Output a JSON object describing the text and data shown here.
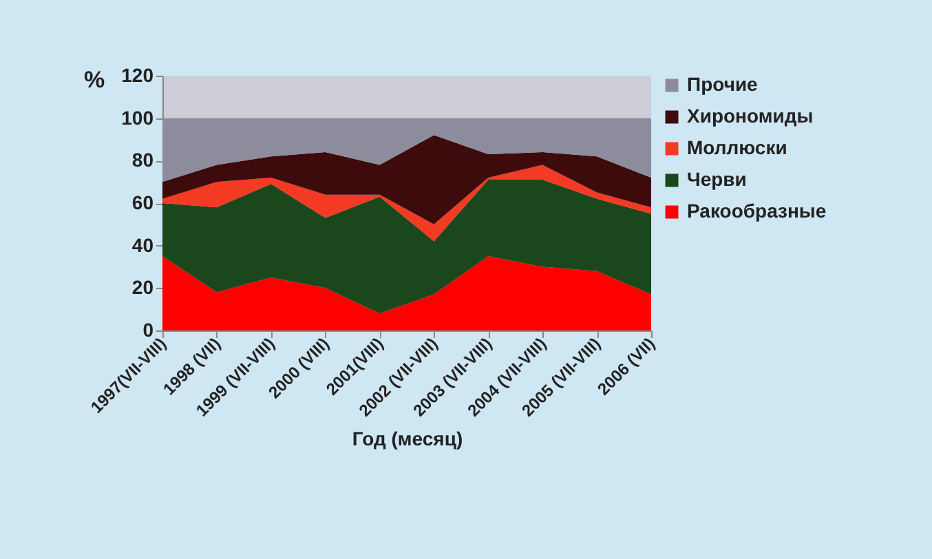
{
  "chart_data": {
    "type": "area",
    "stacked": true,
    "xlabel": "Год (месяц)",
    "ylabel": "%",
    "categories": [
      "1997(VII-VIII)",
      "1998 (VII)",
      "1999 (VII-VIII)",
      "2000 (VIII)",
      "2001(VIII)",
      "2002 (VII-VIII)",
      "2003 (VII-VIII)",
      "2004 (VII-VIII)",
      "2005 (VII-VIII)",
      "2006 (VII)"
    ],
    "series": [
      {
        "name": "Ракообразные",
        "color": "#ff0000",
        "values": [
          35,
          18,
          25,
          20,
          8,
          17,
          35,
          30,
          28,
          17
        ]
      },
      {
        "name": "Черви",
        "color": "#1a471c",
        "values": [
          25,
          40,
          44,
          33,
          55,
          25,
          36,
          41,
          34,
          38
        ]
      },
      {
        "name": "Моллюски",
        "color": "#f33a22",
        "values": [
          2,
          12,
          3,
          11,
          1,
          8,
          1,
          7,
          3,
          3
        ]
      },
      {
        "name": "Хирономиды",
        "color": "#3d0b0c",
        "values": [
          8,
          8,
          10,
          20,
          14,
          42,
          11,
          6,
          17,
          14
        ]
      },
      {
        "name": "Прочие",
        "color": "#8c8c9c",
        "values": [
          30,
          22,
          18,
          16,
          22,
          8,
          17,
          16,
          18,
          28
        ]
      }
    ],
    "ylim": [
      0,
      120
    ],
    "yticks": [
      0,
      20,
      40,
      60,
      80,
      100,
      120
    ],
    "grid": false,
    "legend": "right"
  }
}
